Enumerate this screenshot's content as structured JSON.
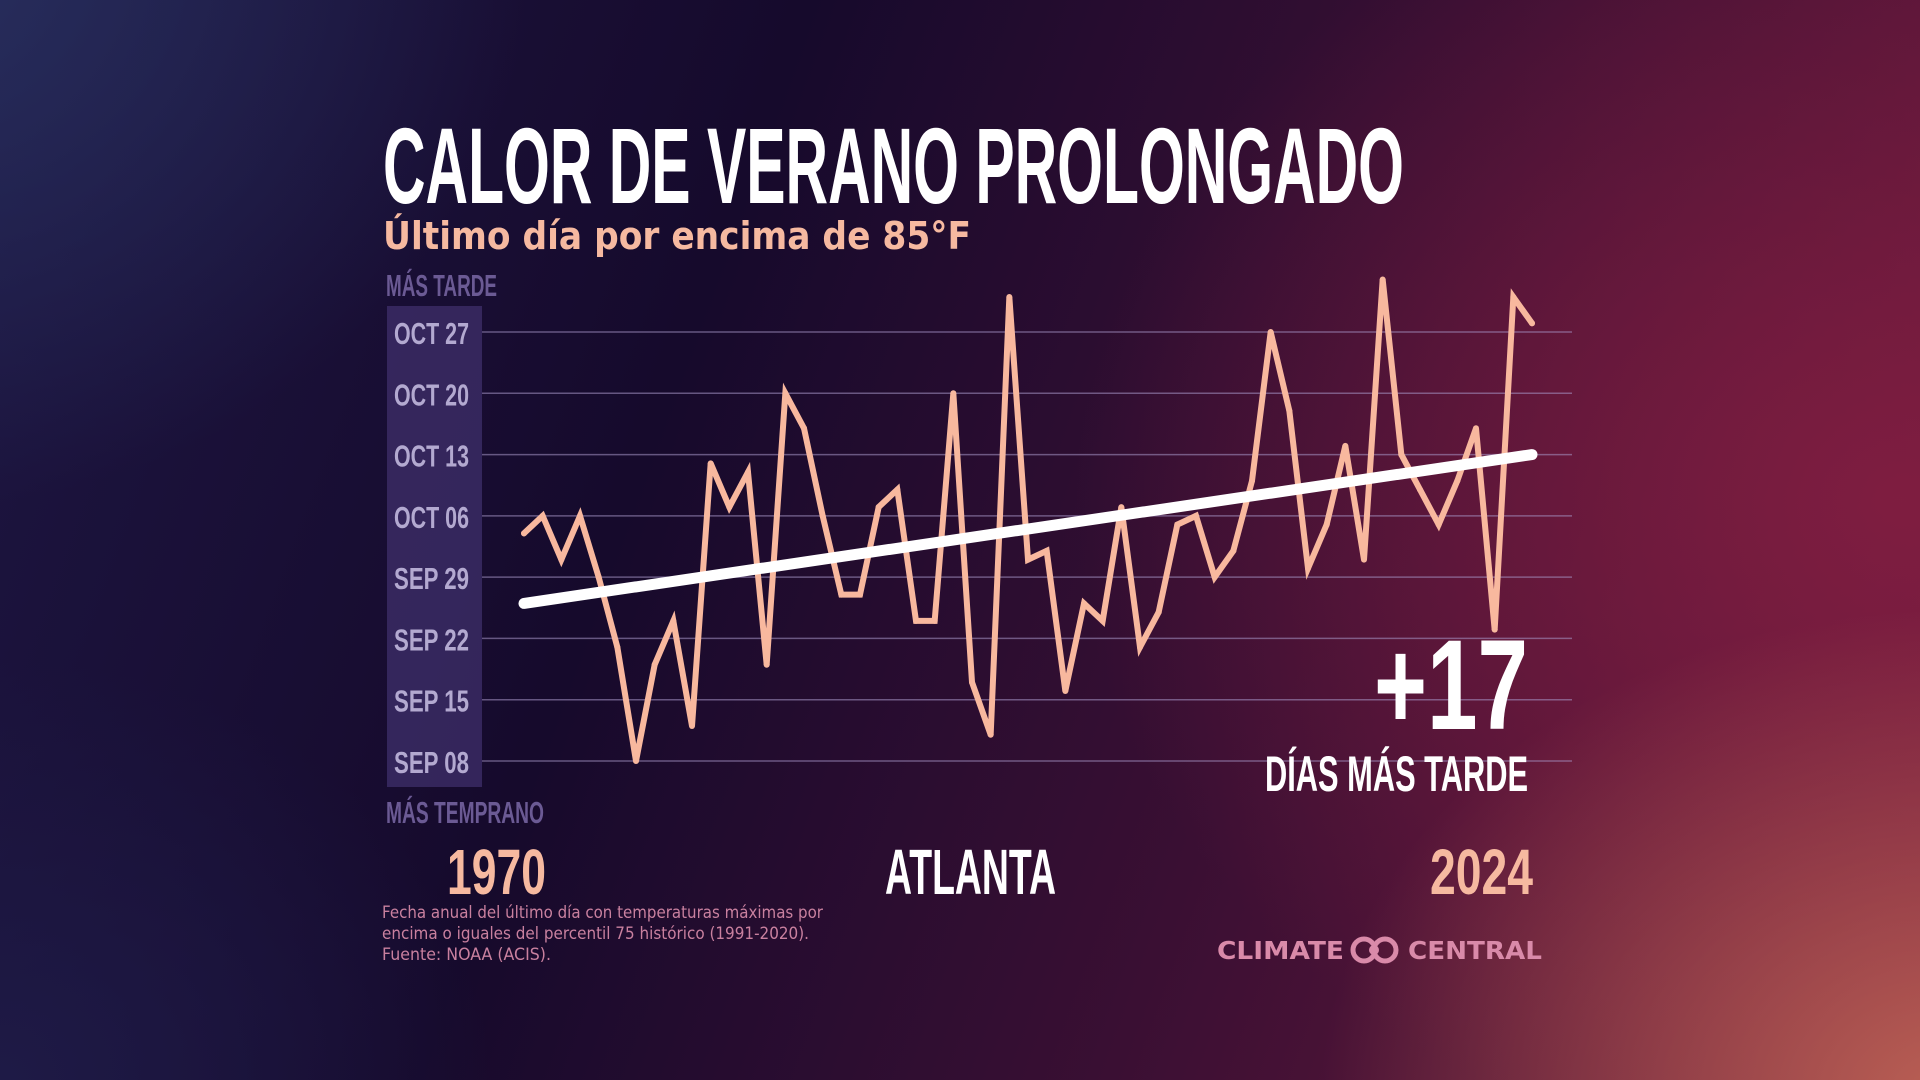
{
  "title": "CALOR DE VERANO PROLONGADO",
  "subtitle": "Último día por encima de 85°F",
  "location": "ATLANTA",
  "axis_top_label": "MÁS TARDE",
  "axis_bottom_label": "MÁS TEMPRANO",
  "start_year_label": "1970",
  "end_year_label": "2024",
  "change_value": "+17",
  "change_label": "DÍAS MÁS TARDE",
  "footnote": [
    "Fecha anual del último día con temperaturas máximas por",
    "encima o iguales del percentil 75 histórico (1991-2020).",
    "Fuente: NOAA (ACIS)."
  ],
  "logo": {
    "left": "CLIMATE",
    "right": "CENTRAL"
  },
  "colors": {
    "series": "#f8b89e",
    "trend": "#ffffff",
    "title": "#ffffff",
    "accent": "#f6b9a0",
    "axis_label": "#6b5a94",
    "tick": "#b3a9d0",
    "logo": "#d98aa9"
  },
  "chart_data": {
    "type": "line",
    "title": "CALOR DE VERANO PROLONGADO",
    "subtitle": "Último día por encima de 85°F",
    "xlabel": "",
    "ylabel": "",
    "x": [
      1970,
      1971,
      1972,
      1973,
      1974,
      1975,
      1976,
      1977,
      1978,
      1979,
      1980,
      1981,
      1982,
      1983,
      1984,
      1985,
      1986,
      1987,
      1988,
      1989,
      1990,
      1991,
      1992,
      1993,
      1994,
      1995,
      1996,
      1997,
      1998,
      1999,
      2000,
      2001,
      2002,
      2003,
      2004,
      2005,
      2006,
      2007,
      2008,
      2009,
      2010,
      2011,
      2012,
      2013,
      2014,
      2015,
      2016,
      2017,
      2018,
      2019,
      2020,
      2021,
      2022,
      2023,
      2024
    ],
    "values": [
      "Oct 04",
      "Oct 06",
      "Oct 01",
      "Oct 06",
      "Sep 29",
      "Sep 21",
      "Sep 08",
      "Sep 19",
      "Sep 24",
      "Sep 12",
      "Oct 12",
      "Oct 07",
      "Oct 11",
      "Sep 19",
      "Oct 20",
      "Oct 16",
      "Oct 06",
      "Sep 27",
      "Sep 27",
      "Oct 07",
      "Oct 09",
      "Sep 24",
      "Sep 24",
      "Oct 20",
      "Sep 17",
      "Sep 11",
      "Oct 31",
      "Oct 01",
      "Oct 02",
      "Sep 16",
      "Sep 26",
      "Sep 24",
      "Oct 07",
      "Sep 21",
      "Sep 25",
      "Oct 05",
      "Oct 06",
      "Sep 29",
      "Oct 02",
      "Oct 10",
      "Oct 27",
      "Oct 18",
      "Sep 30",
      "Oct 05",
      "Oct 14",
      "Oct 01",
      "Nov 02",
      "Oct 13",
      "Oct 09",
      "Oct 05",
      "Oct 10",
      "Oct 16",
      "Sep 23",
      "Oct 31",
      "Oct 28"
    ],
    "trend": {
      "x": [
        1970,
        2024
      ],
      "values": [
        "Sep 26",
        "Oct 13"
      ]
    },
    "y_ticks": [
      "OCT 27",
      "OCT 20",
      "OCT 13",
      "OCT 06",
      "SEP 29",
      "SEP 22",
      "SEP 15",
      "SEP 08"
    ],
    "ylim": [
      "Sep 08",
      "Oct 27"
    ],
    "grid": true,
    "legend": "none"
  }
}
